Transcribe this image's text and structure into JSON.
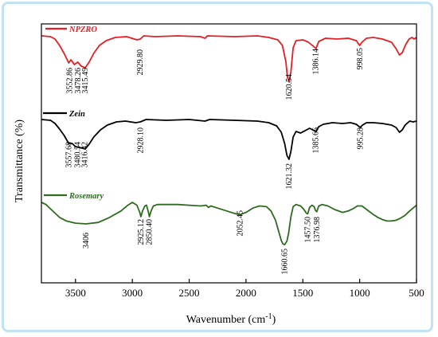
{
  "chart_data": {
    "type": "line",
    "xlabel": "Wavenumber (cm",
    "xlabel_sup": "-1",
    "xlabel_end": ")",
    "ylabel": "Transmittance (%)",
    "xlim": [
      3800,
      500
    ],
    "x_reversed": true,
    "x_ticks": [
      3500,
      3000,
      2500,
      2000,
      1500,
      1000,
      500
    ],
    "grid": false,
    "legend": "inline-top-left-per-trace",
    "series": [
      {
        "name": "NPZRO",
        "color": "#e31e24",
        "peak_labels": [
          "3552.86",
          "3478.26",
          "3415.49",
          "2929.80",
          "1620.54",
          "1386.14",
          "998.05"
        ],
        "points": [
          [
            3800,
            0.0
          ],
          [
            3720,
            0.01
          ],
          [
            3680,
            0.04
          ],
          [
            3640,
            0.12
          ],
          [
            3600,
            0.22
          ],
          [
            3560,
            0.34
          ],
          [
            3540,
            0.3
          ],
          [
            3510,
            0.36
          ],
          [
            3480,
            0.33
          ],
          [
            3450,
            0.38
          ],
          [
            3415,
            0.4
          ],
          [
            3380,
            0.33
          ],
          [
            3340,
            0.22
          ],
          [
            3290,
            0.12
          ],
          [
            3230,
            0.06
          ],
          [
            3150,
            0.02
          ],
          [
            3050,
            0.01
          ],
          [
            2960,
            0.05
          ],
          [
            2930,
            0.04
          ],
          [
            2900,
            0.0
          ],
          [
            2800,
            0.01
          ],
          [
            2600,
            0.0
          ],
          [
            2400,
            0.01
          ],
          [
            2360,
            0.03
          ],
          [
            2340,
            0.0
          ],
          [
            2100,
            0.01
          ],
          [
            1900,
            0.0
          ],
          [
            1800,
            0.02
          ],
          [
            1720,
            0.05
          ],
          [
            1680,
            0.12
          ],
          [
            1650,
            0.32
          ],
          [
            1635,
            0.52
          ],
          [
            1620,
            0.58
          ],
          [
            1605,
            0.45
          ],
          [
            1585,
            0.15
          ],
          [
            1560,
            0.06
          ],
          [
            1500,
            0.05
          ],
          [
            1450,
            0.08
          ],
          [
            1400,
            0.14
          ],
          [
            1385,
            0.16
          ],
          [
            1360,
            0.07
          ],
          [
            1300,
            0.03
          ],
          [
            1200,
            0.04
          ],
          [
            1100,
            0.03
          ],
          [
            1030,
            0.06
          ],
          [
            1000,
            0.12
          ],
          [
            980,
            0.08
          ],
          [
            940,
            0.03
          ],
          [
            880,
            0.02
          ],
          [
            800,
            0.04
          ],
          [
            720,
            0.08
          ],
          [
            680,
            0.16
          ],
          [
            650,
            0.24
          ],
          [
            625,
            0.21
          ],
          [
            595,
            0.11
          ],
          [
            565,
            0.04
          ],
          [
            540,
            0.02
          ],
          [
            520,
            0.04
          ],
          [
            500,
            0.02
          ]
        ]
      },
      {
        "name": "Zein",
        "color": "#000000",
        "peak_labels": [
          "3557.68",
          "3480.54",
          "3416.42",
          "2928.10",
          "1621.32",
          "1385.66",
          "995.28"
        ],
        "points": [
          [
            3800,
            0.0
          ],
          [
            3720,
            0.01
          ],
          [
            3680,
            0.05
          ],
          [
            3640,
            0.12
          ],
          [
            3600,
            0.2
          ],
          [
            3560,
            0.3
          ],
          [
            3530,
            0.3
          ],
          [
            3500,
            0.34
          ],
          [
            3470,
            0.35
          ],
          [
            3440,
            0.36
          ],
          [
            3415,
            0.37
          ],
          [
            3380,
            0.31
          ],
          [
            3340,
            0.22
          ],
          [
            3280,
            0.13
          ],
          [
            3220,
            0.07
          ],
          [
            3140,
            0.03
          ],
          [
            3060,
            0.02
          ],
          [
            2970,
            0.04
          ],
          [
            2930,
            0.03
          ],
          [
            2880,
            0.0
          ],
          [
            2700,
            0.01
          ],
          [
            2500,
            0.0
          ],
          [
            2360,
            0.02
          ],
          [
            2320,
            0.0
          ],
          [
            2100,
            0.01
          ],
          [
            1900,
            0.02
          ],
          [
            1800,
            0.04
          ],
          [
            1730,
            0.08
          ],
          [
            1690,
            0.16
          ],
          [
            1660,
            0.3
          ],
          [
            1640,
            0.45
          ],
          [
            1622,
            0.5
          ],
          [
            1605,
            0.4
          ],
          [
            1585,
            0.22
          ],
          [
            1560,
            0.15
          ],
          [
            1520,
            0.17
          ],
          [
            1480,
            0.14
          ],
          [
            1440,
            0.11
          ],
          [
            1400,
            0.14
          ],
          [
            1385,
            0.15
          ],
          [
            1360,
            0.09
          ],
          [
            1320,
            0.06
          ],
          [
            1240,
            0.04
          ],
          [
            1150,
            0.05
          ],
          [
            1080,
            0.04
          ],
          [
            1030,
            0.06
          ],
          [
            995,
            0.1
          ],
          [
            975,
            0.07
          ],
          [
            940,
            0.04
          ],
          [
            880,
            0.04
          ],
          [
            800,
            0.05
          ],
          [
            720,
            0.07
          ],
          [
            680,
            0.1
          ],
          [
            650,
            0.16
          ],
          [
            625,
            0.13
          ],
          [
            600,
            0.07
          ],
          [
            560,
            0.02
          ],
          [
            530,
            0.03
          ],
          [
            500,
            0.02
          ]
        ]
      },
      {
        "name": "Rosemary",
        "color": "#2e6b1f",
        "peak_labels": [
          "3406",
          "2925.12",
          "2850.40",
          "2052.45",
          "1660.65",
          "1457.50",
          "1376.98"
        ],
        "points": [
          [
            3800,
            0.0
          ],
          [
            3760,
            0.03
          ],
          [
            3720,
            0.09
          ],
          [
            3680,
            0.15
          ],
          [
            3640,
            0.21
          ],
          [
            3580,
            0.26
          ],
          [
            3500,
            0.29
          ],
          [
            3406,
            0.3
          ],
          [
            3300,
            0.28
          ],
          [
            3200,
            0.21
          ],
          [
            3100,
            0.12
          ],
          [
            3040,
            0.04
          ],
          [
            3000,
            0.0
          ],
          [
            2960,
            0.04
          ],
          [
            2935,
            0.14
          ],
          [
            2925,
            0.2
          ],
          [
            2910,
            0.12
          ],
          [
            2890,
            0.05
          ],
          [
            2875,
            0.04
          ],
          [
            2860,
            0.13
          ],
          [
            2850,
            0.2
          ],
          [
            2835,
            0.12
          ],
          [
            2815,
            0.05
          ],
          [
            2780,
            0.03
          ],
          [
            2700,
            0.03
          ],
          [
            2600,
            0.03
          ],
          [
            2500,
            0.04
          ],
          [
            2400,
            0.05
          ],
          [
            2350,
            0.04
          ],
          [
            2330,
            0.07
          ],
          [
            2310,
            0.05
          ],
          [
            2250,
            0.08
          ],
          [
            2150,
            0.13
          ],
          [
            2090,
            0.16
          ],
          [
            2052,
            0.17
          ],
          [
            2000,
            0.14
          ],
          [
            1940,
            0.08
          ],
          [
            1880,
            0.05
          ],
          [
            1820,
            0.06
          ],
          [
            1780,
            0.12
          ],
          [
            1740,
            0.25
          ],
          [
            1710,
            0.42
          ],
          [
            1690,
            0.53
          ],
          [
            1675,
            0.58
          ],
          [
            1660,
            0.59
          ],
          [
            1640,
            0.54
          ],
          [
            1625,
            0.43
          ],
          [
            1605,
            0.2
          ],
          [
            1585,
            0.06
          ],
          [
            1560,
            0.03
          ],
          [
            1520,
            0.05
          ],
          [
            1490,
            0.1
          ],
          [
            1470,
            0.15
          ],
          [
            1457,
            0.16
          ],
          [
            1440,
            0.07
          ],
          [
            1420,
            0.04
          ],
          [
            1400,
            0.06
          ],
          [
            1390,
            0.11
          ],
          [
            1377,
            0.13
          ],
          [
            1360,
            0.05
          ],
          [
            1330,
            0.03
          ],
          [
            1280,
            0.05
          ],
          [
            1220,
            0.1
          ],
          [
            1150,
            0.14
          ],
          [
            1100,
            0.12
          ],
          [
            1060,
            0.09
          ],
          [
            1020,
            0.05
          ],
          [
            980,
            0.05
          ],
          [
            930,
            0.11
          ],
          [
            880,
            0.17
          ],
          [
            840,
            0.21
          ],
          [
            800,
            0.24
          ],
          [
            760,
            0.26
          ],
          [
            720,
            0.26
          ],
          [
            680,
            0.25
          ],
          [
            640,
            0.22
          ],
          [
            600,
            0.18
          ],
          [
            560,
            0.12
          ],
          [
            530,
            0.08
          ],
          [
            500,
            0.04
          ]
        ]
      }
    ]
  }
}
